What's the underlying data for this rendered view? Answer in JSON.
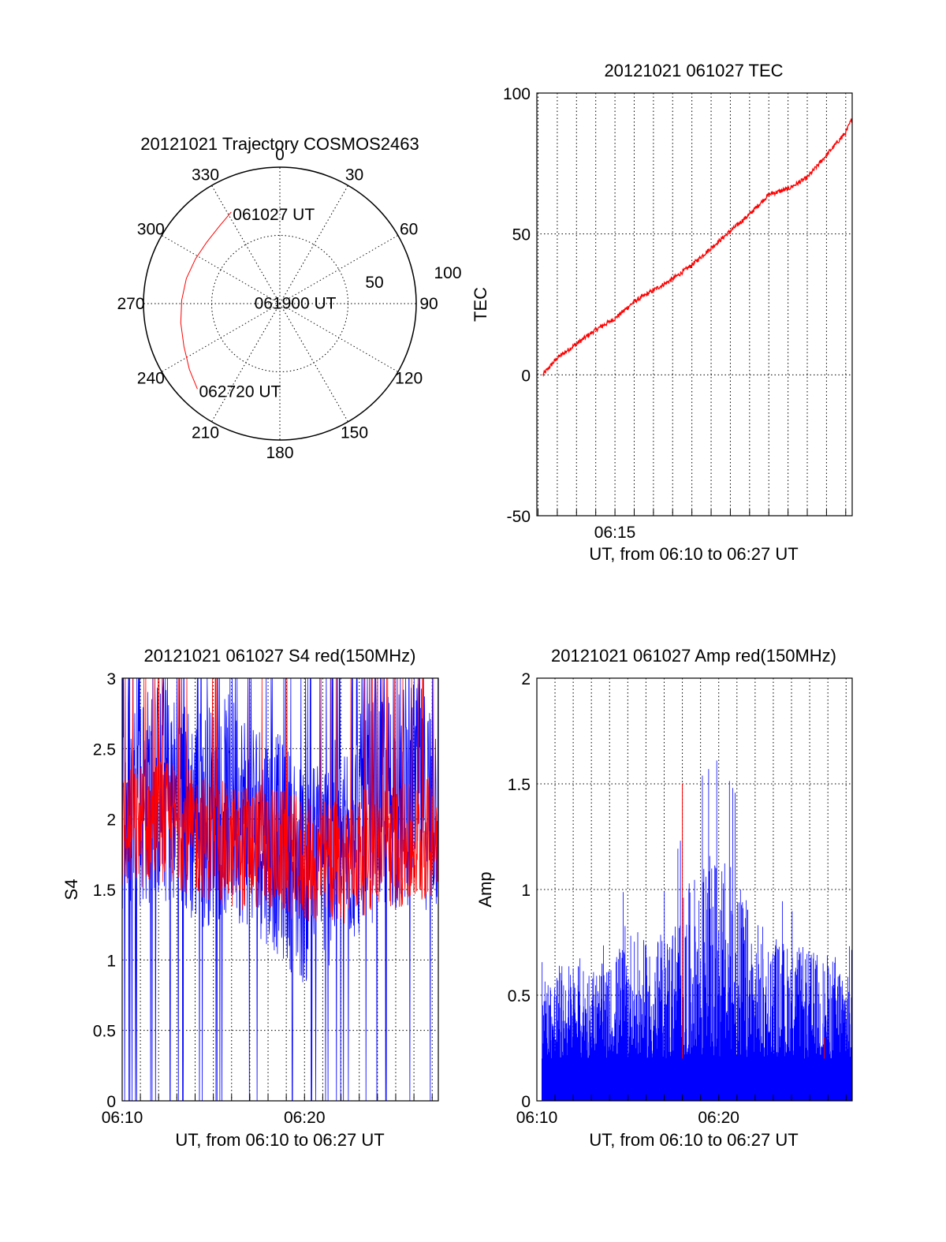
{
  "chart_data": [
    {
      "type": "polar-trajectory",
      "title": "20121021 Trajectory COSMOS2463",
      "angle_labels": [
        "0",
        "30",
        "60",
        "90",
        "120",
        "150",
        "180",
        "210",
        "240",
        "270",
        "300",
        "330"
      ],
      "radial_labels": [
        "50",
        "100"
      ],
      "rmax": 100,
      "grid": true,
      "series": [
        {
          "color": "#ff0000",
          "points": [
            {
              "az": 332,
              "r": 76
            },
            {
              "az": 322,
              "r": 72
            },
            {
              "az": 310,
              "r": 70
            },
            {
              "az": 298,
              "r": 70
            },
            {
              "az": 285,
              "r": 71
            },
            {
              "az": 272,
              "r": 72
            },
            {
              "az": 259,
              "r": 74
            },
            {
              "az": 246,
              "r": 77
            },
            {
              "az": 234,
              "r": 82
            },
            {
              "az": 224,
              "r": 87
            }
          ]
        }
      ],
      "annotations": [
        {
          "text": "061027 UT",
          "az": 332,
          "r": 76
        },
        {
          "text": "061900 UT",
          "az": 276,
          "r": 20
        },
        {
          "text": "062720 UT",
          "az": 224,
          "r": 87
        }
      ]
    },
    {
      "type": "line",
      "title": "20121021 061027 TEC",
      "xlabel": "UT, from 06:10 to 06:27 UT",
      "ylabel": "TEC",
      "xlim": [
        6.1823,
        6.4556
      ],
      "ylim": [
        -50,
        100
      ],
      "yticks": [
        -50,
        0,
        50,
        100
      ],
      "xticks": [
        {
          "value": 6.25,
          "label": "06:15"
        }
      ],
      "grid": true,
      "series": [
        {
          "color": "#ff0000",
          "x": [
            6.1875,
            6.2,
            6.2167,
            6.2333,
            6.25,
            6.2667,
            6.2833,
            6.3,
            6.3167,
            6.3333,
            6.35,
            6.3667,
            6.3833,
            6.4,
            6.4167,
            6.4333,
            6.45,
            6.4556
          ],
          "y": [
            0,
            6,
            11,
            16,
            20,
            26,
            30,
            34,
            39,
            45,
            51,
            57,
            64,
            66,
            70,
            78,
            86,
            91
          ]
        }
      ]
    },
    {
      "type": "line",
      "title": "20121021 061027 S4 red(150MHz)",
      "xlabel": "UT, from 06:10 to 06:27 UT",
      "ylabel": "S4",
      "xlim": [
        6.1667,
        6.4556
      ],
      "ylim": [
        0,
        3
      ],
      "yticks": [
        0,
        0.5,
        1,
        1.5,
        2,
        2.5,
        3
      ],
      "yticklabels": [
        "0",
        "0.5",
        "1",
        "1.5",
        "2",
        "2.5",
        "3"
      ],
      "xticks": [
        {
          "value": 6.1667,
          "label": "06:10"
        },
        {
          "value": 6.3333,
          "label": "06:20"
        }
      ],
      "grid": true,
      "series": [
        {
          "color": "#0000ff",
          "description_free": true,
          "x": [
            6.1667,
            6.2,
            6.2333,
            6.2667,
            6.3,
            6.3333,
            6.3667,
            6.4,
            6.4333,
            6.4556
          ],
          "y": [
            2.1,
            2.2,
            2.0,
            2.1,
            1.9,
            1.6,
            1.8,
            2.1,
            2.2,
            2.1
          ]
        },
        {
          "color": "#ff0000",
          "x": [
            6.1667,
            6.2,
            6.2333,
            6.2667,
            6.3,
            6.3333,
            6.3667,
            6.4,
            6.4333,
            6.4556
          ],
          "y": [
            1.9,
            2.0,
            1.9,
            1.8,
            1.8,
            1.7,
            1.7,
            1.8,
            1.8,
            1.9
          ]
        }
      ]
    },
    {
      "type": "line",
      "title": "20121021 061027 Amp red(150MHz)",
      "xlabel": "UT, from 06:10 to 06:27 UT",
      "ylabel": "Amp",
      "xlim": [
        6.1667,
        6.4556
      ],
      "ylim": [
        0,
        2
      ],
      "yticks": [
        0,
        0.5,
        1,
        1.5,
        2
      ],
      "yticklabels": [
        "0",
        "0.5",
        "1",
        "1.5",
        "2"
      ],
      "xticks": [
        {
          "value": 6.1667,
          "label": "06:10"
        },
        {
          "value": 6.3333,
          "label": "06:20"
        }
      ],
      "grid": true,
      "series": [
        {
          "color": "#0000ff",
          "x": [
            6.1667,
            6.2,
            6.2333,
            6.25,
            6.2667,
            6.2833,
            6.3,
            6.3167,
            6.3333,
            6.35,
            6.3667,
            6.4,
            6.4333,
            6.4556
          ],
          "y": [
            0.35,
            0.45,
            0.4,
            0.6,
            0.5,
            0.55,
            0.7,
            0.85,
            0.9,
            0.8,
            0.6,
            0.5,
            0.45,
            0.5
          ]
        },
        {
          "color": "#ff0000",
          "x": [
            6.3,
            6.43
          ],
          "y": [
            1.5,
            0.3
          ]
        }
      ]
    }
  ]
}
